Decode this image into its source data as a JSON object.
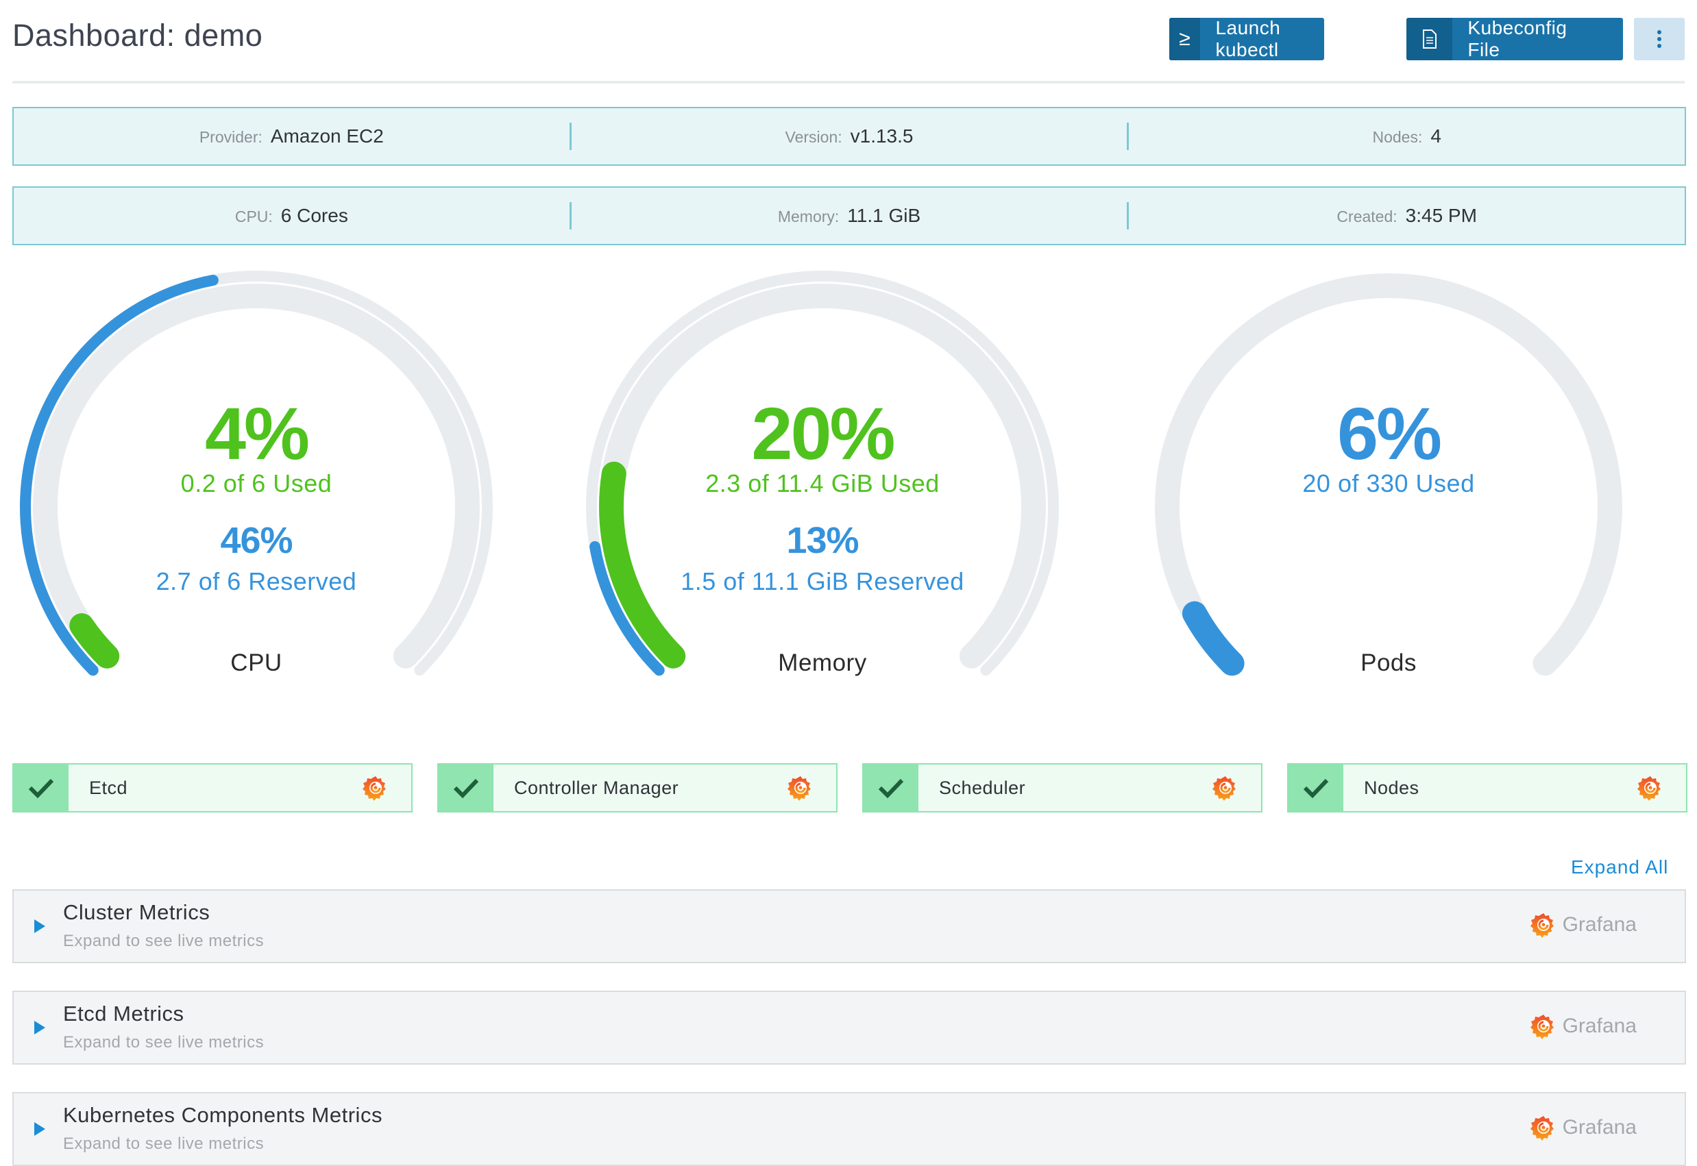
{
  "header": {
    "title": "Dashboard: demo",
    "launch_kubectl": "Launch kubectl",
    "launch_kubectl_icon": "≥",
    "kubeconfig_file": "Kubeconfig File"
  },
  "info_row_1": [
    {
      "label": "Provider:",
      "value": "Amazon EC2"
    },
    {
      "label": "Version:",
      "value": "v1.13.5"
    },
    {
      "label": "Nodes:",
      "value": "4"
    }
  ],
  "info_row_2": [
    {
      "label": "CPU:",
      "value": "6 Cores"
    },
    {
      "label": "Memory:",
      "value": "11.1 GiB"
    },
    {
      "label": "Created:",
      "value": "3:45 PM"
    }
  ],
  "gauges": {
    "cpu": {
      "used_pct": "4%",
      "used_text": "0.2 of 6 Used",
      "reserved_pct": "46%",
      "reserved_text": "2.7 of 6 Reserved",
      "name": "CPU",
      "used_fraction": 0.04,
      "reserved_fraction": 0.46
    },
    "memory": {
      "used_pct": "20%",
      "used_text": "2.3 of 11.4 GiB Used",
      "reserved_pct": "13%",
      "reserved_text": "1.5 of 11.1 GiB Reserved",
      "name": "Memory",
      "used_fraction": 0.2,
      "reserved_fraction": 0.13
    },
    "pods": {
      "used_pct": "6%",
      "used_text": "20 of 330 Used",
      "name": "Pods",
      "used_fraction": 0.06
    }
  },
  "components": [
    {
      "name": "Etcd",
      "status": "healthy"
    },
    {
      "name": "Controller Manager",
      "status": "healthy"
    },
    {
      "name": "Scheduler",
      "status": "healthy"
    },
    {
      "name": "Nodes",
      "status": "healthy"
    }
  ],
  "expand_all": "Expand All",
  "metrics": [
    {
      "title": "Cluster Metrics",
      "subtitle": "Expand to see live metrics",
      "link": "Grafana"
    },
    {
      "title": "Etcd Metrics",
      "subtitle": "Expand to see live metrics",
      "link": "Grafana"
    },
    {
      "title": "Kubernetes Components Metrics",
      "subtitle": "Expand to see live metrics",
      "link": "Grafana"
    }
  ],
  "colors": {
    "primary": "#1a73a8",
    "used": "#4fc21e",
    "reserved": "#3593dc",
    "track": "#e9ecef",
    "healthy": "#8fe4b0",
    "info_bg": "#e8f5f7"
  }
}
